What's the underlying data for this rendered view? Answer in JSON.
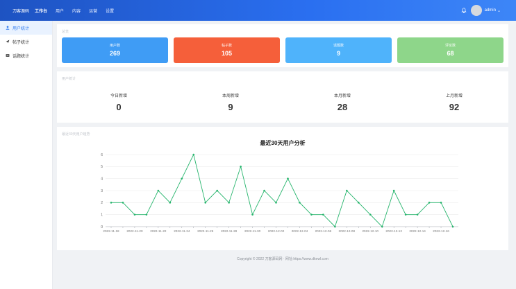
{
  "header": {
    "brand": "刀客源码",
    "nav": [
      "工作台",
      "用户",
      "内容",
      "运营",
      "设置"
    ],
    "admin": "admin"
  },
  "sidebar": {
    "items": [
      {
        "label": "用户统计",
        "icon": "user-icon"
      },
      {
        "label": "帖子统计",
        "icon": "send-icon"
      },
      {
        "label": "话题统计",
        "icon": "list-icon"
      }
    ]
  },
  "stats": {
    "title": "总览",
    "cards": [
      {
        "label": "用户数",
        "value": "269",
        "color": "#3f9cf5"
      },
      {
        "label": "帖子数",
        "value": "105",
        "color": "#f55f3a"
      },
      {
        "label": "话题数",
        "value": "9",
        "color": "#4fb3fb"
      },
      {
        "label": "评论数",
        "value": "68",
        "color": "#8ed68a"
      }
    ]
  },
  "growth": {
    "title": "用户统计",
    "items": [
      {
        "label": "今日新增",
        "value": "0"
      },
      {
        "label": "本周新增",
        "value": "9"
      },
      {
        "label": "本月新增",
        "value": "28"
      },
      {
        "label": "上月新增",
        "value": "92"
      }
    ]
  },
  "chart_panel": {
    "title": "最近30天用户趋势"
  },
  "chart_data": {
    "type": "line",
    "title": "最近30天用户分析",
    "ylim": [
      0,
      6
    ],
    "yticks": [
      0,
      1,
      2,
      3,
      4,
      5,
      6
    ],
    "x": [
      "2022-11-18",
      "2022-11-19",
      "2022-11-20",
      "2022-11-21",
      "2022-11-22",
      "2022-11-23",
      "2022-11-24",
      "2022-11-25",
      "2022-11-26",
      "2022-11-27",
      "2022-11-28",
      "2022-11-29",
      "2022-11-30",
      "2022-12-01",
      "2022-12-02",
      "2022-12-03",
      "2022-12-04",
      "2022-12-05",
      "2022-12-06",
      "2022-12-07",
      "2022-12-08",
      "2022-12-09",
      "2022-12-10",
      "2022-12-11",
      "2022-12-12",
      "2022-12-13",
      "2022-12-14",
      "2022-12-15",
      "2022-12-16",
      "2022-12-17"
    ],
    "xtick_labels": [
      "2022-11-18",
      "2022-11-20",
      "2022-11-22",
      "2022-11-24",
      "2022-11-26",
      "2022-11-28",
      "2022-11-30",
      "2022-12-02",
      "2022-12-04",
      "2022-12-06",
      "2022-12-08",
      "2022-12-10",
      "2022-12-12",
      "2022-12-14",
      "2022-12-16"
    ],
    "series": [
      {
        "values": [
          2,
          2,
          1,
          1,
          3,
          2,
          4,
          6,
          2,
          3,
          2,
          5,
          1,
          3,
          2,
          4,
          2,
          1,
          1,
          0,
          3,
          2,
          1,
          0,
          3,
          1,
          1,
          2,
          2,
          0
        ],
        "color": "#27b56d"
      }
    ],
    "grid": true
  },
  "footer": "Copyright © 2022 刀客源码网 · 网址:https://www.dkewl.com"
}
